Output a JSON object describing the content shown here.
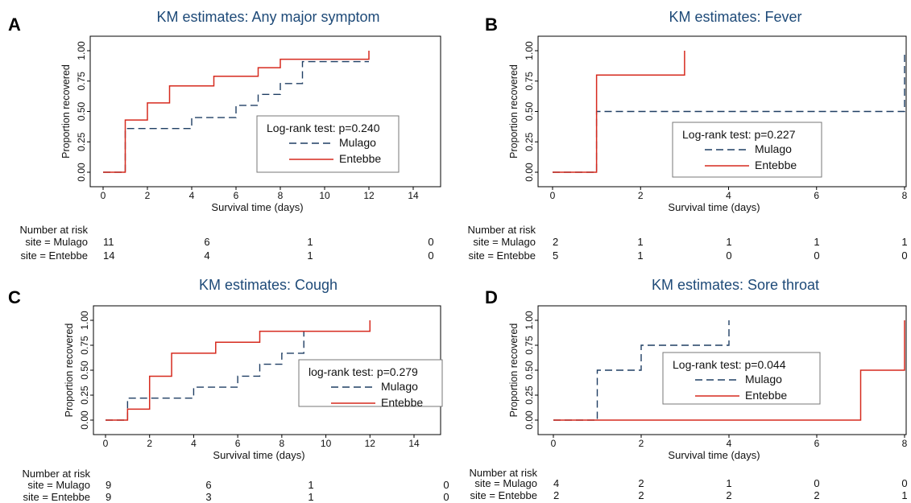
{
  "chart_data": [
    {
      "type": "line",
      "letter": "A",
      "title": "KM estimates: Any major symptom",
      "xlabel": "Survival time (days)",
      "ylabel": "Proportion recovered",
      "xlim": [
        0,
        15
      ],
      "ylim": [
        0,
        1
      ],
      "x_ticks": [
        0,
        2,
        4,
        6,
        8,
        10,
        12,
        14
      ],
      "y_ticks": [
        "0.00",
        "0.25",
        "0.50",
        "0.75",
        "1.00"
      ],
      "legend": {
        "test": "Log-rank test: p=0.240",
        "position": "center-right"
      },
      "series": [
        {
          "name": "Mulago",
          "style": "dashed",
          "color": "#1f3e63",
          "steps": [
            [
              0,
              0
            ],
            [
              1,
              0.36
            ],
            [
              4,
              0.45
            ],
            [
              6,
              0.55
            ],
            [
              7,
              0.64
            ],
            [
              8,
              0.73
            ],
            [
              9,
              0.91
            ],
            [
              12,
              0.91
            ]
          ]
        },
        {
          "name": "Entebbe",
          "style": "solid",
          "color": "#d62a1e",
          "steps": [
            [
              0,
              0
            ],
            [
              1,
              0.43
            ],
            [
              2,
              0.57
            ],
            [
              3,
              0.71
            ],
            [
              5,
              0.79
            ],
            [
              7,
              0.86
            ],
            [
              8,
              0.93
            ],
            [
              12,
              1.0
            ]
          ]
        }
      ],
      "risk_table": {
        "header": "Number at risk",
        "times": [
          0,
          5,
          10,
          15
        ],
        "rows": [
          {
            "label": "site = Mulago",
            "values": [
              "11",
              "6",
              "1",
              "0"
            ]
          },
          {
            "label": "site = Entebbe",
            "values": [
              "14",
              "4",
              "1",
              "0"
            ]
          }
        ]
      }
    },
    {
      "type": "line",
      "letter": "B",
      "title": "KM estimates: Fever",
      "xlabel": "Survival time (days)",
      "ylabel": "Proportion recovered",
      "xlim": [
        0,
        8
      ],
      "ylim": [
        0,
        1
      ],
      "x_ticks": [
        0,
        2,
        4,
        6,
        8
      ],
      "y_ticks": [
        "0.00",
        "0.25",
        "0.50",
        "0.75",
        "1.00"
      ],
      "legend": {
        "test": "Log-rank test: p=0.227",
        "position": "center-right"
      },
      "series": [
        {
          "name": "Mulago",
          "style": "dashed",
          "color": "#1f3e63",
          "steps": [
            [
              0,
              0
            ],
            [
              1,
              0.5
            ],
            [
              8,
              1.0
            ]
          ]
        },
        {
          "name": "Entebbe",
          "style": "solid",
          "color": "#d62a1e",
          "steps": [
            [
              0,
              0
            ],
            [
              1,
              0.8
            ],
            [
              3,
              1.0
            ]
          ]
        }
      ],
      "risk_table": {
        "header": "Number at risk",
        "times": [
          0,
          2,
          4,
          6,
          8
        ],
        "rows": [
          {
            "label": "site = Mulago",
            "values": [
              "2",
              "1",
              "1",
              "1",
              "1"
            ]
          },
          {
            "label": "site = Entebbe",
            "values": [
              "5",
              "1",
              "0",
              "0",
              "0"
            ]
          }
        ]
      }
    },
    {
      "type": "line",
      "letter": "C",
      "title": "KM estimates: Cough",
      "xlabel": "Survival time (days)",
      "ylabel": "Proportion recovered",
      "xlim": [
        0,
        15
      ],
      "ylim": [
        0,
        1
      ],
      "x_ticks": [
        0,
        2,
        4,
        6,
        8,
        10,
        12,
        14
      ],
      "y_ticks": [
        "0.00",
        "0.25",
        "0.50",
        "0.75",
        "1.00"
      ],
      "legend": {
        "test": "log-rank test: p=0.279",
        "position": "center-right"
      },
      "series": [
        {
          "name": "Mulago",
          "style": "dashed",
          "color": "#1f3e63",
          "steps": [
            [
              0,
              0
            ],
            [
              1,
              0.22
            ],
            [
              4,
              0.33
            ],
            [
              6,
              0.44
            ],
            [
              7,
              0.56
            ],
            [
              8,
              0.67
            ],
            [
              9,
              0.89
            ]
          ]
        },
        {
          "name": "Entebbe",
          "style": "solid",
          "color": "#d62a1e",
          "steps": [
            [
              0,
              0
            ],
            [
              1,
              0.11
            ],
            [
              2,
              0.44
            ],
            [
              3,
              0.67
            ],
            [
              5,
              0.78
            ],
            [
              7,
              0.89
            ],
            [
              12,
              1.0
            ]
          ]
        }
      ],
      "risk_table": {
        "header": "Number at risk",
        "times": [
          0,
          5,
          10,
          15
        ],
        "rows": [
          {
            "label": "site = Mulago",
            "values": [
              "9",
              "6",
              "1",
              "0"
            ]
          },
          {
            "label": "site = Entebbe",
            "values": [
              "9",
              "3",
              "1",
              "0"
            ]
          }
        ]
      }
    },
    {
      "type": "line",
      "letter": "D",
      "title": "KM estimates: Sore throat",
      "xlabel": "Survival time (days)",
      "ylabel": "Proportion recovered",
      "xlim": [
        0,
        8
      ],
      "ylim": [
        0,
        1
      ],
      "x_ticks": [
        0,
        2,
        4,
        6,
        8
      ],
      "y_ticks": [
        "0.00",
        "0.25",
        "0.50",
        "0.75",
        "1.00"
      ],
      "legend": {
        "test": "Log-rank test: p=0.044",
        "position": "center"
      },
      "series": [
        {
          "name": "Mulago",
          "style": "dashed",
          "color": "#1f3e63",
          "steps": [
            [
              0,
              0
            ],
            [
              1,
              0.5
            ],
            [
              2,
              0.75
            ],
            [
              4,
              1.0
            ]
          ]
        },
        {
          "name": "Entebbe",
          "style": "solid",
          "color": "#d62a1e",
          "steps": [
            [
              0,
              0
            ],
            [
              7,
              0.5
            ],
            [
              8,
              1.0
            ]
          ]
        }
      ],
      "risk_table": {
        "header": "Number at risk",
        "times": [
          0,
          2,
          4,
          6,
          8
        ],
        "rows": [
          {
            "label": "site = Mulago",
            "values": [
              "4",
              "2",
              "1",
              "0",
              "0"
            ]
          },
          {
            "label": "site = Entebbe",
            "values": [
              "2",
              "2",
              "2",
              "2",
              "1"
            ]
          }
        ]
      }
    }
  ]
}
